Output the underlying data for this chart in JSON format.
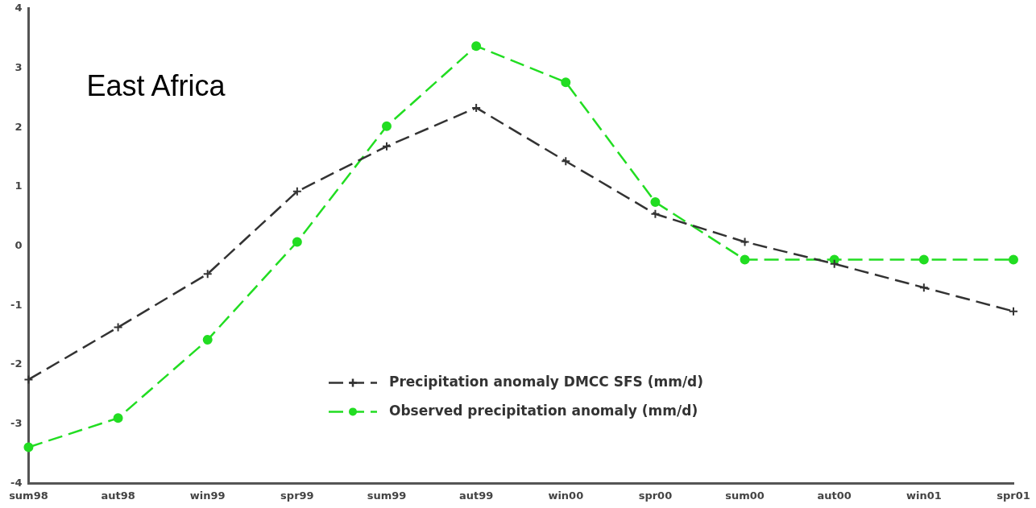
{
  "chart_data": {
    "type": "line",
    "categories": [
      "sum98",
      "aut98",
      "win99",
      "spr99",
      "sum99",
      "aut99",
      "win00",
      "spr00",
      "sum00",
      "aut00",
      "win01",
      "spr01"
    ],
    "ylim": [
      -4,
      4
    ],
    "yticks": [
      -4,
      -3,
      -2,
      -1,
      0,
      1,
      2,
      3,
      4
    ],
    "grid": false,
    "legend": "bottom right",
    "line_style": "dashed",
    "annotations": [
      "East Africa"
    ],
    "series": [
      {
        "name": "Precipitation anomaly DMCC SFS (mm/d)",
        "color": "#333333",
        "marker": "cross",
        "values": [
          -2.25,
          -1.37,
          -0.47,
          0.92,
          1.68,
          2.33,
          1.43,
          0.54,
          0.07,
          -0.3,
          -0.7,
          -1.1
        ]
      },
      {
        "name": "Observed precipitation anomaly (mm/d)",
        "color": "#22dd22",
        "marker": "circle",
        "values": [
          -3.39,
          -2.9,
          -1.58,
          0.07,
          2.02,
          3.37,
          2.76,
          0.74,
          -0.23,
          -0.23,
          -0.23,
          -0.23
        ]
      }
    ]
  }
}
